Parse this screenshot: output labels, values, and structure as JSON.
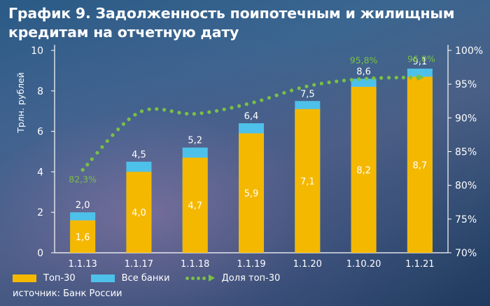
{
  "title": "График 9. Задолженность поипотечным и жилищным кредитам на отчетную дату",
  "source": "источник: Банк России",
  "colors": {
    "top30": "#f5b800",
    "all": "#4ec1ea",
    "share": "#79c143",
    "axis": "#ffffff"
  },
  "chart_data": {
    "type": "bar",
    "categories": [
      "1.1.13",
      "1.1.17",
      "1.1.18",
      "1.1.19",
      "1.1.20",
      "1.10.20",
      "1.1.21"
    ],
    "ylabel": "Трлн. рублей",
    "ylim": [
      0,
      10
    ],
    "y_ticks": [
      "0",
      "2",
      "4",
      "6",
      "8",
      "10"
    ],
    "y2lim": [
      70,
      100
    ],
    "y2_ticks": [
      "70%",
      "75%",
      "80%",
      "85%",
      "90%",
      "95%",
      "100%"
    ],
    "grid": false,
    "legend": "bottom-left",
    "series": [
      {
        "name": "Топ-30",
        "values": [
          1.6,
          4.0,
          4.7,
          5.9,
          7.1,
          8.2,
          8.7
        ],
        "labels": [
          "1,6",
          "4,0",
          "4,7",
          "5,9",
          "7,1",
          "8,2",
          "8,7"
        ]
      },
      {
        "name": "Все банки",
        "values": [
          2.0,
          4.5,
          5.2,
          6.4,
          7.5,
          8.6,
          9.1
        ],
        "labels": [
          "2,0",
          "4,5",
          "5,2",
          "6,4",
          "7,5",
          "8,6",
          "9,1"
        ]
      },
      {
        "name": "Доля топ-30",
        "axis": "right",
        "values": [
          82.3,
          90.8,
          90.6,
          92.2,
          94.7,
          95.8,
          96.0
        ],
        "annotations": [
          {
            "index": 0,
            "text": "82,3%"
          },
          {
            "index": 5,
            "text": "95,8%"
          },
          {
            "index": 6,
            "text": "96,0%"
          }
        ]
      }
    ]
  }
}
